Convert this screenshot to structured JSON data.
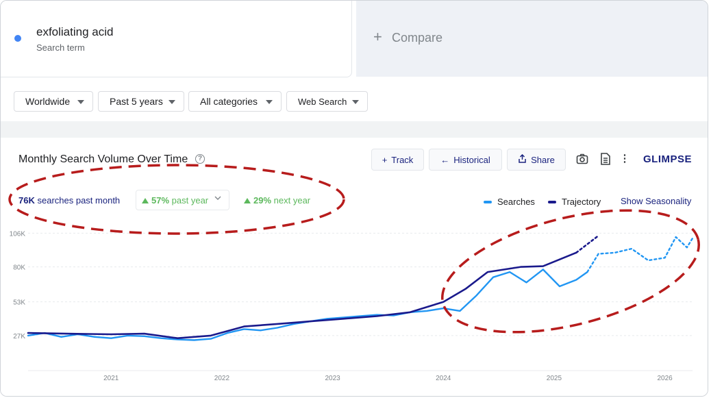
{
  "term": {
    "name": "exfoliating acid",
    "subtitle": "Search term",
    "dot_color": "#4285f4"
  },
  "compare": {
    "label": "Compare",
    "icon": "plus-icon"
  },
  "filters": [
    {
      "label": "Worldwide"
    },
    {
      "label": "Past 5 years"
    },
    {
      "label": "All categories"
    },
    {
      "label": "Web Search"
    }
  ],
  "panel": {
    "title": "Monthly Search Volume Over Time",
    "buttons": {
      "track": "Track",
      "historical": "Historical",
      "share": "Share"
    },
    "brand": "GLIMPSE"
  },
  "stats": {
    "volume_value": "76K",
    "volume_label": "searches past month",
    "past_year_value": "57%",
    "past_year_label": "past year",
    "next_year_value": "29%",
    "next_year_label": "next year"
  },
  "legend": {
    "searches": "Searches",
    "trajectory": "Trajectory",
    "seasonality": "Show Seasonality"
  },
  "colors": {
    "searches": "#2196f3",
    "trajectory": "#1a1a8c",
    "annotation": "#b71c1c",
    "accent": "#1a237e",
    "up": "#5cb85c"
  },
  "chart_data": {
    "type": "line",
    "y_ticks": [
      "27K",
      "53K",
      "80K",
      "106K"
    ],
    "y_tick_values": [
      27000,
      53000,
      80000,
      106000
    ],
    "ylim": [
      0,
      112000
    ],
    "x_ticks": [
      "2021",
      "2022",
      "2023",
      "2024",
      "2025",
      "2026"
    ],
    "x_range": [
      2020.25,
      2026.25
    ],
    "series": [
      {
        "name": "Searches",
        "style": "solid",
        "points": [
          [
            2020.25,
            27000
          ],
          [
            2020.4,
            29000
          ],
          [
            2020.55,
            26000
          ],
          [
            2020.7,
            28000
          ],
          [
            2020.85,
            26000
          ],
          [
            2021.0,
            25000
          ],
          [
            2021.15,
            27000
          ],
          [
            2021.3,
            26500
          ],
          [
            2021.45,
            25000
          ],
          [
            2021.6,
            24000
          ],
          [
            2021.75,
            23500
          ],
          [
            2021.9,
            24500
          ],
          [
            2022.05,
            29000
          ],
          [
            2022.2,
            32000
          ],
          [
            2022.35,
            31000
          ],
          [
            2022.5,
            33000
          ],
          [
            2022.65,
            36000
          ],
          [
            2022.8,
            38000
          ],
          [
            2022.95,
            40000
          ],
          [
            2023.1,
            41000
          ],
          [
            2023.25,
            42000
          ],
          [
            2023.4,
            43000
          ],
          [
            2023.55,
            42500
          ],
          [
            2023.7,
            45000
          ],
          [
            2023.85,
            46000
          ],
          [
            2024.0,
            48000
          ],
          [
            2024.15,
            46000
          ],
          [
            2024.3,
            58000
          ],
          [
            2024.45,
            72000
          ],
          [
            2024.6,
            76000
          ],
          [
            2024.75,
            68000
          ],
          [
            2024.9,
            78000
          ],
          [
            2025.05,
            65000
          ],
          [
            2025.2,
            70000
          ],
          [
            2025.3,
            76000
          ]
        ]
      },
      {
        "name": "Searches",
        "style": "dotted",
        "points": [
          [
            2025.3,
            76000
          ],
          [
            2025.4,
            90000
          ],
          [
            2025.55,
            91000
          ],
          [
            2025.7,
            94000
          ],
          [
            2025.85,
            85000
          ],
          [
            2026.0,
            87000
          ],
          [
            2026.1,
            103000
          ],
          [
            2026.2,
            95000
          ],
          [
            2026.25,
            102000
          ]
        ]
      },
      {
        "name": "Trajectory",
        "style": "solid",
        "points": [
          [
            2020.25,
            29000
          ],
          [
            2020.6,
            28500
          ],
          [
            2021.0,
            28000
          ],
          [
            2021.3,
            28500
          ],
          [
            2021.6,
            25000
          ],
          [
            2021.9,
            27000
          ],
          [
            2022.2,
            34000
          ],
          [
            2022.5,
            36000
          ],
          [
            2022.8,
            38000
          ],
          [
            2023.1,
            40000
          ],
          [
            2023.4,
            42000
          ],
          [
            2023.7,
            45000
          ],
          [
            2024.0,
            53000
          ],
          [
            2024.2,
            63000
          ],
          [
            2024.4,
            76000
          ],
          [
            2024.7,
            80000
          ],
          [
            2024.9,
            80500
          ],
          [
            2025.2,
            91000
          ]
        ]
      },
      {
        "name": "Trajectory",
        "style": "dotted",
        "points": [
          [
            2025.2,
            91000
          ],
          [
            2025.4,
            104000
          ]
        ]
      }
    ]
  }
}
